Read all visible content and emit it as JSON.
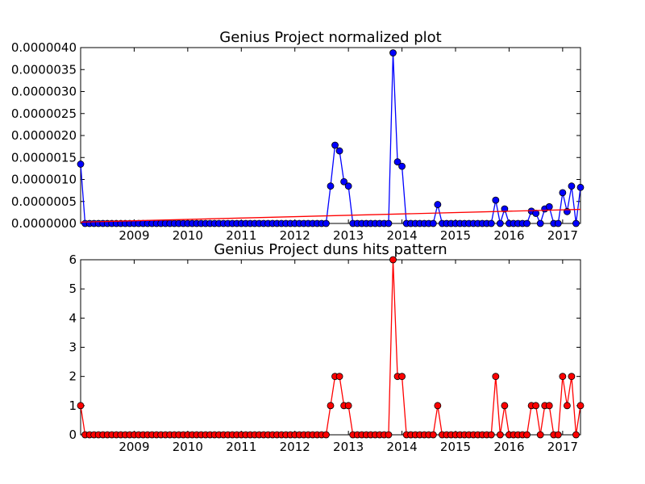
{
  "chart_data": [
    {
      "type": "line",
      "title": "Genius Project normalized plot",
      "xlabel": "",
      "ylabel": "",
      "xlim": [
        "2008-01",
        "2017-05"
      ],
      "ylim": [
        0,
        4e-06
      ],
      "grid": false,
      "legend": "none",
      "x_ticks": [
        "2009",
        "2010",
        "2011",
        "2012",
        "2013",
        "2014",
        "2015",
        "2016",
        "2017"
      ],
      "y_ticks": [
        "0.0000000",
        "0.0000005",
        "0.0000010",
        "0.0000015",
        "0.0000020",
        "0.0000025",
        "0.0000030",
        "0.0000035",
        "0.0000040"
      ],
      "series": [
        {
          "color": "#0000ff",
          "marker": "circle",
          "points": [
            [
              "2008-01",
              1.35e-06
            ],
            [
              "2008-02",
              0
            ],
            [
              "2008-03",
              0
            ],
            [
              "2008-04",
              0
            ],
            [
              "2008-05",
              0
            ],
            [
              "2008-06",
              0
            ],
            [
              "2008-07",
              0
            ],
            [
              "2008-08",
              0
            ],
            [
              "2008-09",
              0
            ],
            [
              "2008-10",
              0
            ],
            [
              "2008-11",
              0
            ],
            [
              "2008-12",
              0
            ],
            [
              "2009-01",
              0
            ],
            [
              "2009-02",
              0
            ],
            [
              "2009-03",
              0
            ],
            [
              "2009-04",
              0
            ],
            [
              "2009-05",
              0
            ],
            [
              "2009-06",
              0
            ],
            [
              "2009-07",
              0
            ],
            [
              "2009-08",
              0
            ],
            [
              "2009-09",
              0
            ],
            [
              "2009-10",
              0
            ],
            [
              "2009-11",
              0
            ],
            [
              "2009-12",
              0
            ],
            [
              "2010-01",
              0
            ],
            [
              "2010-02",
              0
            ],
            [
              "2010-03",
              0
            ],
            [
              "2010-04",
              0
            ],
            [
              "2010-05",
              0
            ],
            [
              "2010-06",
              0
            ],
            [
              "2010-07",
              0
            ],
            [
              "2010-08",
              0
            ],
            [
              "2010-09",
              0
            ],
            [
              "2010-10",
              0
            ],
            [
              "2010-11",
              0
            ],
            [
              "2010-12",
              0
            ],
            [
              "2011-01",
              0
            ],
            [
              "2011-02",
              0
            ],
            [
              "2011-03",
              0
            ],
            [
              "2011-04",
              0
            ],
            [
              "2011-05",
              0
            ],
            [
              "2011-06",
              0
            ],
            [
              "2011-07",
              0
            ],
            [
              "2011-08",
              0
            ],
            [
              "2011-09",
              0
            ],
            [
              "2011-10",
              0
            ],
            [
              "2011-11",
              0
            ],
            [
              "2011-12",
              0
            ],
            [
              "2012-01",
              0
            ],
            [
              "2012-02",
              0
            ],
            [
              "2012-03",
              0
            ],
            [
              "2012-04",
              0
            ],
            [
              "2012-05",
              0
            ],
            [
              "2012-06",
              0
            ],
            [
              "2012-07",
              0
            ],
            [
              "2012-08",
              0
            ],
            [
              "2012-09",
              8.5e-07
            ],
            [
              "2012-10",
              1.78e-06
            ],
            [
              "2012-11",
              1.65e-06
            ],
            [
              "2012-12",
              9.5e-07
            ],
            [
              "2013-01",
              8.5e-07
            ],
            [
              "2013-02",
              0
            ],
            [
              "2013-03",
              0
            ],
            [
              "2013-04",
              0
            ],
            [
              "2013-05",
              0
            ],
            [
              "2013-06",
              0
            ],
            [
              "2013-07",
              0
            ],
            [
              "2013-08",
              0
            ],
            [
              "2013-09",
              0
            ],
            [
              "2013-10",
              0
            ],
            [
              "2013-11",
              3.88e-06
            ],
            [
              "2013-12",
              1.4e-06
            ],
            [
              "2014-01",
              1.3e-06
            ],
            [
              "2014-02",
              0
            ],
            [
              "2014-03",
              0
            ],
            [
              "2014-04",
              0
            ],
            [
              "2014-05",
              0
            ],
            [
              "2014-06",
              0
            ],
            [
              "2014-07",
              0
            ],
            [
              "2014-08",
              0
            ],
            [
              "2014-09",
              4.3e-07
            ],
            [
              "2014-10",
              0
            ],
            [
              "2014-11",
              0
            ],
            [
              "2014-12",
              0
            ],
            [
              "2015-01",
              0
            ],
            [
              "2015-02",
              0
            ],
            [
              "2015-03",
              0
            ],
            [
              "2015-04",
              0
            ],
            [
              "2015-05",
              0
            ],
            [
              "2015-06",
              0
            ],
            [
              "2015-07",
              0
            ],
            [
              "2015-08",
              0
            ],
            [
              "2015-09",
              0
            ],
            [
              "2015-10",
              5.3e-07
            ],
            [
              "2015-11",
              0
            ],
            [
              "2015-12",
              3.3e-07
            ],
            [
              "2016-01",
              0
            ],
            [
              "2016-02",
              0
            ],
            [
              "2016-03",
              0
            ],
            [
              "2016-04",
              0
            ],
            [
              "2016-05",
              0
            ],
            [
              "2016-06",
              2.8e-07
            ],
            [
              "2016-07",
              2.3e-07
            ],
            [
              "2016-08",
              0
            ],
            [
              "2016-09",
              3.3e-07
            ],
            [
              "2016-10",
              3.8e-07
            ],
            [
              "2016-11",
              0
            ],
            [
              "2016-12",
              0
            ],
            [
              "2017-01",
              7e-07
            ],
            [
              "2017-02",
              2.7e-07
            ],
            [
              "2017-03",
              8.5e-07
            ],
            [
              "2017-04",
              0
            ],
            [
              "2017-05",
              8.2e-07
            ]
          ]
        },
        {
          "color": "#ff0000",
          "marker": "none",
          "points": [
            [
              "2008-01",
              3e-08
            ],
            [
              "2017-05",
              3.2e-07
            ]
          ]
        }
      ]
    },
    {
      "type": "line",
      "title": "Genius Project duns hits pattern",
      "xlabel": "",
      "ylabel": "",
      "xlim": [
        "2008-01",
        "2017-05"
      ],
      "ylim": [
        0,
        6
      ],
      "grid": false,
      "legend": "none",
      "x_ticks": [
        "2009",
        "2010",
        "2011",
        "2012",
        "2013",
        "2014",
        "2015",
        "2016",
        "2017"
      ],
      "y_ticks": [
        "0",
        "1",
        "2",
        "3",
        "4",
        "5",
        "6"
      ],
      "series": [
        {
          "color": "#ff0000",
          "marker": "circle",
          "points": [
            [
              "2008-01",
              1
            ],
            [
              "2008-02",
              0
            ],
            [
              "2008-03",
              0
            ],
            [
              "2008-04",
              0
            ],
            [
              "2008-05",
              0
            ],
            [
              "2008-06",
              0
            ],
            [
              "2008-07",
              0
            ],
            [
              "2008-08",
              0
            ],
            [
              "2008-09",
              0
            ],
            [
              "2008-10",
              0
            ],
            [
              "2008-11",
              0
            ],
            [
              "2008-12",
              0
            ],
            [
              "2009-01",
              0
            ],
            [
              "2009-02",
              0
            ],
            [
              "2009-03",
              0
            ],
            [
              "2009-04",
              0
            ],
            [
              "2009-05",
              0
            ],
            [
              "2009-06",
              0
            ],
            [
              "2009-07",
              0
            ],
            [
              "2009-08",
              0
            ],
            [
              "2009-09",
              0
            ],
            [
              "2009-10",
              0
            ],
            [
              "2009-11",
              0
            ],
            [
              "2009-12",
              0
            ],
            [
              "2010-01",
              0
            ],
            [
              "2010-02",
              0
            ],
            [
              "2010-03",
              0
            ],
            [
              "2010-04",
              0
            ],
            [
              "2010-05",
              0
            ],
            [
              "2010-06",
              0
            ],
            [
              "2010-07",
              0
            ],
            [
              "2010-08",
              0
            ],
            [
              "2010-09",
              0
            ],
            [
              "2010-10",
              0
            ],
            [
              "2010-11",
              0
            ],
            [
              "2010-12",
              0
            ],
            [
              "2011-01",
              0
            ],
            [
              "2011-02",
              0
            ],
            [
              "2011-03",
              0
            ],
            [
              "2011-04",
              0
            ],
            [
              "2011-05",
              0
            ],
            [
              "2011-06",
              0
            ],
            [
              "2011-07",
              0
            ],
            [
              "2011-08",
              0
            ],
            [
              "2011-09",
              0
            ],
            [
              "2011-10",
              0
            ],
            [
              "2011-11",
              0
            ],
            [
              "2011-12",
              0
            ],
            [
              "2012-01",
              0
            ],
            [
              "2012-02",
              0
            ],
            [
              "2012-03",
              0
            ],
            [
              "2012-04",
              0
            ],
            [
              "2012-05",
              0
            ],
            [
              "2012-06",
              0
            ],
            [
              "2012-07",
              0
            ],
            [
              "2012-08",
              0
            ],
            [
              "2012-09",
              1
            ],
            [
              "2012-10",
              2
            ],
            [
              "2012-11",
              2
            ],
            [
              "2012-12",
              1
            ],
            [
              "2013-01",
              1
            ],
            [
              "2013-02",
              0
            ],
            [
              "2013-03",
              0
            ],
            [
              "2013-04",
              0
            ],
            [
              "2013-05",
              0
            ],
            [
              "2013-06",
              0
            ],
            [
              "2013-07",
              0
            ],
            [
              "2013-08",
              0
            ],
            [
              "2013-09",
              0
            ],
            [
              "2013-10",
              0
            ],
            [
              "2013-11",
              6
            ],
            [
              "2013-12",
              2
            ],
            [
              "2014-01",
              2
            ],
            [
              "2014-02",
              0
            ],
            [
              "2014-03",
              0
            ],
            [
              "2014-04",
              0
            ],
            [
              "2014-05",
              0
            ],
            [
              "2014-06",
              0
            ],
            [
              "2014-07",
              0
            ],
            [
              "2014-08",
              0
            ],
            [
              "2014-09",
              1
            ],
            [
              "2014-10",
              0
            ],
            [
              "2014-11",
              0
            ],
            [
              "2014-12",
              0
            ],
            [
              "2015-01",
              0
            ],
            [
              "2015-02",
              0
            ],
            [
              "2015-03",
              0
            ],
            [
              "2015-04",
              0
            ],
            [
              "2015-05",
              0
            ],
            [
              "2015-06",
              0
            ],
            [
              "2015-07",
              0
            ],
            [
              "2015-08",
              0
            ],
            [
              "2015-09",
              0
            ],
            [
              "2015-10",
              2
            ],
            [
              "2015-11",
              0
            ],
            [
              "2015-12",
              1
            ],
            [
              "2016-01",
              0
            ],
            [
              "2016-02",
              0
            ],
            [
              "2016-03",
              0
            ],
            [
              "2016-04",
              0
            ],
            [
              "2016-05",
              0
            ],
            [
              "2016-06",
              1
            ],
            [
              "2016-07",
              1
            ],
            [
              "2016-08",
              0
            ],
            [
              "2016-09",
              1
            ],
            [
              "2016-10",
              1
            ],
            [
              "2016-11",
              0
            ],
            [
              "2016-12",
              0
            ],
            [
              "2017-01",
              2
            ],
            [
              "2017-02",
              1
            ],
            [
              "2017-03",
              2
            ],
            [
              "2017-04",
              0
            ],
            [
              "2017-05",
              1
            ]
          ]
        }
      ]
    }
  ]
}
